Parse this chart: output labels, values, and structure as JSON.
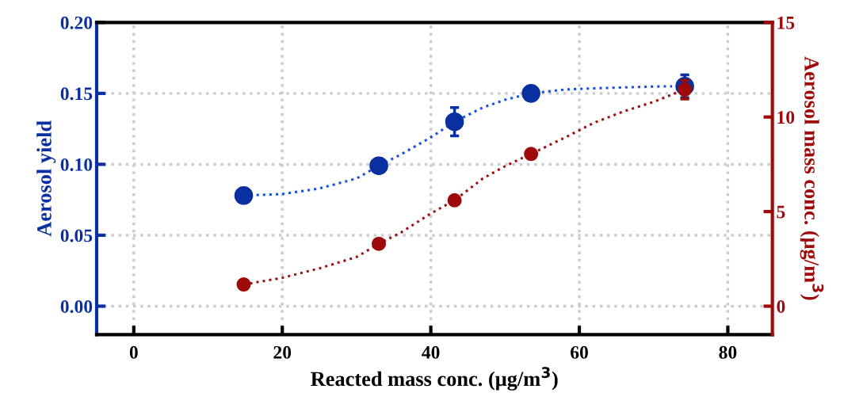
{
  "chart_data": {
    "type": "scatter",
    "xlabel": "Reacted mass conc. (μg/m$^{3}$)",
    "ylabel": "Aerosol yield",
    "y2label": "Aerosol mass conc. (μg/m$^{3}$)",
    "xlim": [
      -5,
      86
    ],
    "xticks": [
      0,
      20,
      40,
      60,
      80
    ],
    "ylim": [
      -0.02,
      0.2
    ],
    "yticks": [
      {
        "value": 0,
        "label": "0.00"
      },
      0.05,
      {
        "value": 0.1,
        "label": "0.10"
      },
      0.15,
      {
        "value": 0.2,
        "label": "0.20"
      }
    ],
    "y2lim": [
      -1.5,
      15
    ],
    "y2ticks": [
      0,
      5,
      10,
      15
    ],
    "grid": true,
    "marker": "circle",
    "series": [
      {
        "type": "line",
        "line_style": "dotted",
        "marker": "none",
        "color": "#1a4fe0",
        "x": [
          14.8,
          20,
          25,
          30,
          33,
          36,
          40,
          43.2,
          47,
          50,
          53.5,
          58,
          62,
          66,
          70,
          72.5
        ],
        "values": [
          0.078,
          0.079,
          0.083,
          0.09,
          0.099,
          0.107,
          0.119,
          0.13,
          0.14,
          0.1455,
          0.15,
          0.1527,
          0.1536,
          0.1542,
          0.1548,
          0.155
        ]
      },
      {
        "type": "line",
        "line_style": "dotted",
        "marker": "none",
        "color": "#a01010",
        "axis": "y2",
        "x": [
          14.8,
          20,
          25,
          30,
          33,
          36,
          40,
          43.2,
          47,
          50,
          53.5,
          58,
          62,
          66,
          70,
          73.2
        ],
        "values": [
          1.15,
          1.5,
          2.0,
          2.6,
          3.3,
          3.9,
          4.9,
          5.6,
          6.75,
          7.4,
          8.05,
          8.9,
          9.7,
          10.3,
          10.8,
          11.3
        ]
      },
      {
        "color": "#0a2fa0",
        "x": [
          14.8,
          33,
          43.2,
          53.5,
          74.2
        ],
        "values": [
          0.078,
          0.099,
          0.13,
          0.15,
          0.155
        ],
        "errors": [
          null,
          null,
          0.01,
          null,
          0.008
        ]
      },
      {
        "color": "#9e0a0a",
        "axis": "y2",
        "x": [
          14.8,
          33,
          43.2,
          53.5,
          74.2
        ],
        "values": [
          1.15,
          3.3,
          5.6,
          8.05,
          11.45
        ],
        "errors": [
          null,
          null,
          null,
          null,
          0.5
        ]
      }
    ]
  }
}
